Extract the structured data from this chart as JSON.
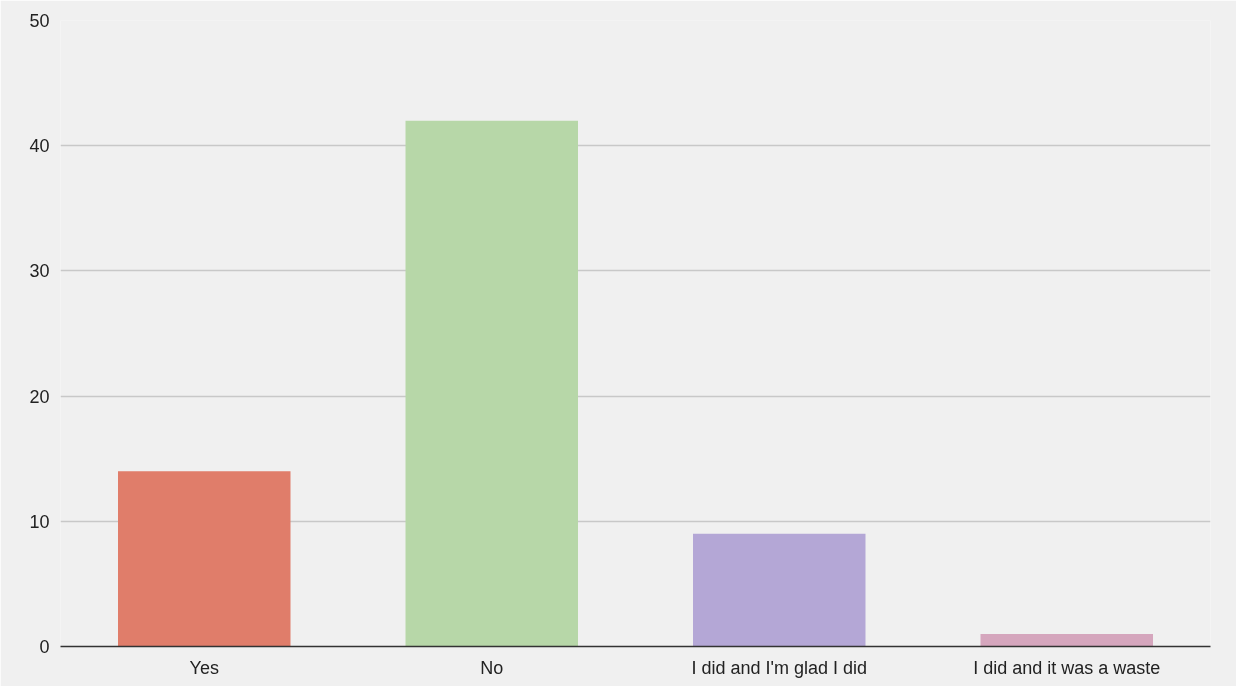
{
  "chart_data": {
    "type": "bar",
    "categories": [
      "Yes",
      "No",
      "I did and I'm glad I did",
      "I did and it was a waste"
    ],
    "values": [
      14,
      42,
      9,
      1
    ],
    "colors": [
      "#e07d6a",
      "#b7d7a8",
      "#b4a7d6",
      "#d5a6bd"
    ],
    "ylim": [
      0,
      50
    ],
    "yticks": [
      0,
      10,
      20,
      30,
      40,
      50
    ],
    "grid": "y"
  }
}
